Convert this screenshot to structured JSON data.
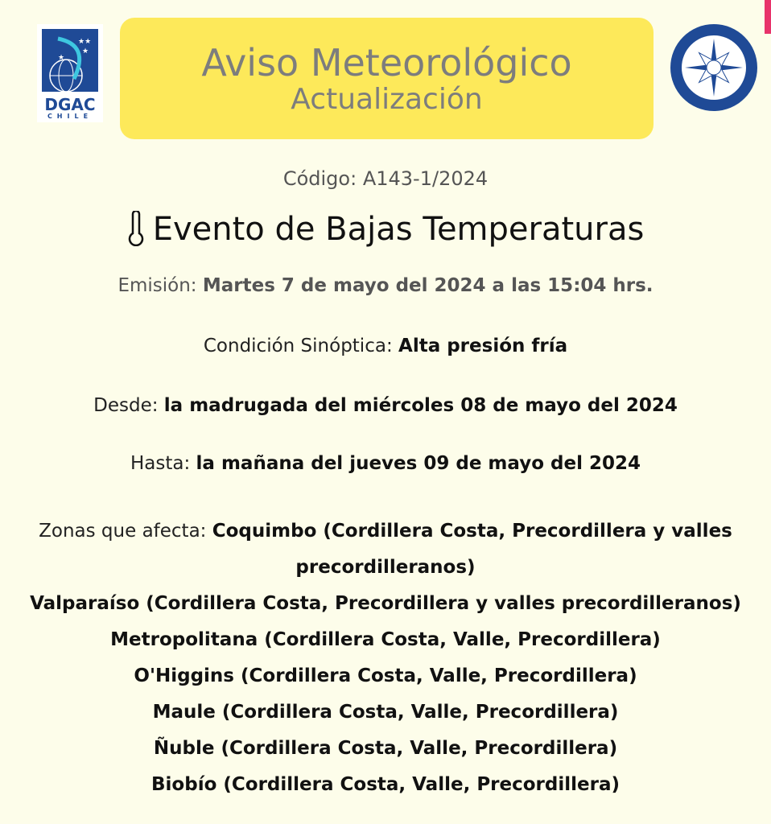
{
  "header": {
    "title": "Aviso Meteorológico",
    "subtitle": "Actualización",
    "logo_left": "DGAC CHILE",
    "logo_right": "DIRECCIÓN METEOROLÓGICA METEOCHILE",
    "banner_color": "#fde95a"
  },
  "code": {
    "label": "Código:",
    "value": "A143-1/2024"
  },
  "event": {
    "icon": "thermometer-icon",
    "title": "Evento de Bajas Temperaturas"
  },
  "emission": {
    "label": "Emisión:",
    "value": "Martes 7 de mayo del 2024 a las 15:04 hrs."
  },
  "synoptic": {
    "label": "Condición Sinóptica:",
    "value": "Alta presión fría"
  },
  "from": {
    "label": "Desde:",
    "value": "la madrugada del miércoles 08 de mayo del 2024"
  },
  "until": {
    "label": "Hasta:",
    "value": "la mañana del jueves 09 de mayo del 2024"
  },
  "zones": {
    "label": "Zonas que afecta:",
    "first": "Coquimbo (Cordillera Costa, Precordillera y valles",
    "first_cont": "precordilleranos)",
    "items": [
      "Valparaíso (Cordillera Costa, Precordillera y valles precordilleranos)",
      "Metropolitana (Cordillera Costa, Valle, Precordillera)",
      "O'Higgins (Cordillera Costa, Valle, Precordillera)",
      "Maule (Cordillera Costa, Valle, Precordillera)",
      "Ñuble (Cordillera Costa, Valle, Precordillera)",
      "Biobío (Cordillera Costa, Valle, Precordillera)"
    ]
  }
}
